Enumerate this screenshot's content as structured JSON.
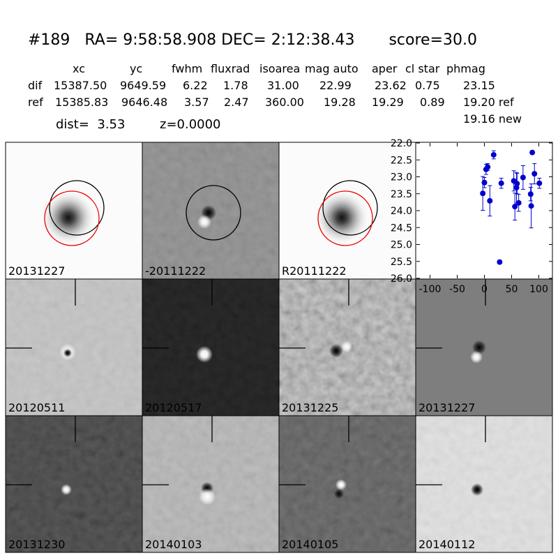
{
  "header": {
    "title": "#189   RA= 9:58:58.908 DEC= 2:12:38.43       score=30.0"
  },
  "table": {
    "columns": [
      "xc",
      "yc",
      "fwhm",
      "fluxrad",
      "isoarea",
      "mag auto",
      "aper",
      "cl star",
      "phmag"
    ],
    "rows": [
      [
        "dif",
        "15387.50",
        "9649.59",
        "6.22",
        "1.78",
        "31.00",
        "22.99",
        "23.62",
        "0.75",
        "23.15"
      ],
      [
        "ref",
        "15385.83",
        "9646.48",
        "3.57",
        "2.47",
        "360.00",
        "19.28",
        "19.29",
        "0.89",
        "19.20 ref"
      ]
    ],
    "extra": "19.16 new"
  },
  "info": {
    "dist": "dist=  3.53",
    "z": "z=0.0000"
  },
  "panels": [
    {
      "label": "20131227"
    },
    {
      "label": "-20111222"
    },
    {
      "label": "R20111222"
    },
    {
      "label": "20120511"
    },
    {
      "label": "20120517"
    },
    {
      "label": "20131225"
    },
    {
      "label": "20131227",
      "label_color": "#ff0000"
    },
    {
      "label": "20131230"
    },
    {
      "label": "20140103"
    },
    {
      "label": "20140105"
    },
    {
      "label": "20140112"
    }
  ],
  "chart_data": {
    "type": "scatter",
    "color": "#0000cc",
    "x": [
      -3,
      0,
      3,
      6,
      10,
      17,
      28,
      31,
      54,
      56,
      59,
      60,
      63,
      71,
      85,
      86,
      88,
      92,
      101
    ],
    "values": [
      23.49,
      23.17,
      22.78,
      22.71,
      23.71,
      22.35,
      25.52,
      23.19,
      23.12,
      23.88,
      23.32,
      23.2,
      23.77,
      23.02,
      23.51,
      23.86,
      22.28,
      22.91,
      23.19
    ],
    "errors": [
      0.5,
      0.15,
      0.15,
      0.1,
      0.45,
      0.12,
      0.05,
      0.15,
      0.3,
      0.4,
      0.45,
      0.3,
      0.25,
      0.35,
      0.2,
      0.65,
      0.05,
      0.3,
      0.15
    ],
    "xlim": [
      -125,
      125
    ],
    "xticks": [
      -100,
      -50,
      0,
      50,
      100
    ],
    "ylim": [
      26,
      22
    ],
    "yticks": [
      {
        "value": 22,
        "label": "22.0"
      },
      {
        "value": 22.5,
        "label": "22.5"
      },
      {
        "value": 23,
        "label": "23.0"
      },
      {
        "value": 23.5,
        "label": "23.5"
      },
      {
        "value": 24,
        "label": "24.0"
      },
      {
        "value": 24.5,
        "label": "24.5"
      },
      {
        "value": 25,
        "label": "25.0"
      },
      {
        "value": 25.5,
        "label": "25.5"
      },
      {
        "value": 26,
        "label": "26.0"
      }
    ]
  }
}
